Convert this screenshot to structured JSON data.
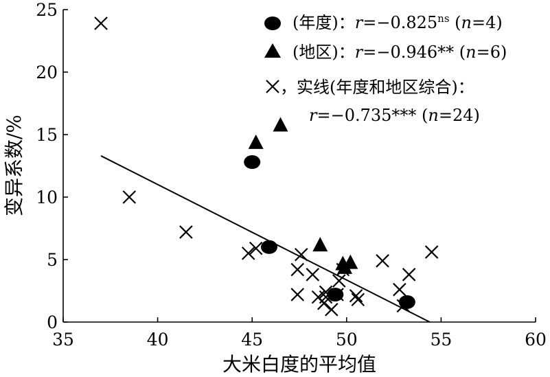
{
  "chart_data": {
    "type": "scatter",
    "xlabel": "大米白度的平均值",
    "ylabel": "变异系数/%",
    "xlim": [
      35,
      60
    ],
    "ylim": [
      0,
      25
    ],
    "xticks": [
      "35",
      "40",
      "45",
      "50",
      "55",
      "60"
    ],
    "yticks": [
      "0",
      "5",
      "10",
      "15",
      "20",
      "25"
    ],
    "grid": false,
    "legend_position": "top-right",
    "series": [
      {
        "name": "(年度)",
        "marker": "circle",
        "stat": "r=−0.825ns (n=4)",
        "points": [
          [
            45.0,
            12.8
          ],
          [
            45.9,
            6.0
          ],
          [
            49.4,
            2.2
          ],
          [
            53.2,
            1.6
          ]
        ]
      },
      {
        "name": "(地区)",
        "marker": "triangle",
        "stat": "r=−0.946** (n=6)",
        "points": [
          [
            45.2,
            14.4
          ],
          [
            46.5,
            15.8
          ],
          [
            48.6,
            6.2
          ],
          [
            49.8,
            4.7
          ],
          [
            50.2,
            4.8
          ],
          [
            49.9,
            4.4
          ]
        ]
      },
      {
        "name": "实线(年度和地区综合)",
        "marker": "cross",
        "stat": "r=−0.735*** (n=24)",
        "points": [
          [
            37.0,
            23.9
          ],
          [
            38.5,
            10.0
          ],
          [
            41.5,
            7.2
          ],
          [
            44.8,
            5.5
          ],
          [
            45.2,
            5.9
          ],
          [
            47.4,
            4.2
          ],
          [
            47.6,
            5.4
          ],
          [
            48.2,
            3.8
          ],
          [
            47.4,
            2.2
          ],
          [
            48.5,
            2.0
          ],
          [
            48.8,
            1.5
          ],
          [
            49.2,
            1.0
          ],
          [
            48.9,
            2.4
          ],
          [
            49.6,
            3.3
          ],
          [
            50.5,
            2.1
          ],
          [
            50.6,
            1.8
          ],
          [
            51.9,
            4.9
          ],
          [
            52.8,
            2.6
          ],
          [
            53.0,
            1.3
          ],
          [
            53.3,
            3.8
          ],
          [
            54.5,
            5.6
          ],
          [
            49.5,
            2.2
          ],
          [
            48.9,
            2.0
          ],
          [
            49.8,
            4.2
          ]
        ]
      }
    ],
    "fit_line": {
      "x": [
        37.0,
        54.4
      ],
      "y": [
        13.3,
        0
      ]
    }
  },
  "legend": {
    "l1_label": "(年度)：",
    "l1_r": "r",
    "l1_val": "=−0.825",
    "l1_sup": "ns",
    "l1_n_open": " (",
    "l1_n": "n",
    "l1_n_val": "=4)",
    "l2_label": "(地区)：",
    "l2_r": "r",
    "l2_val": "=−0.946** (",
    "l2_n": "n",
    "l2_n_val": "=6)",
    "l3_label": "，实线(年度和地区综合)：",
    "l4_r": "r",
    "l4_val": "=−0.735*** (",
    "l4_n": "n",
    "l4_n_val": "=24)"
  }
}
